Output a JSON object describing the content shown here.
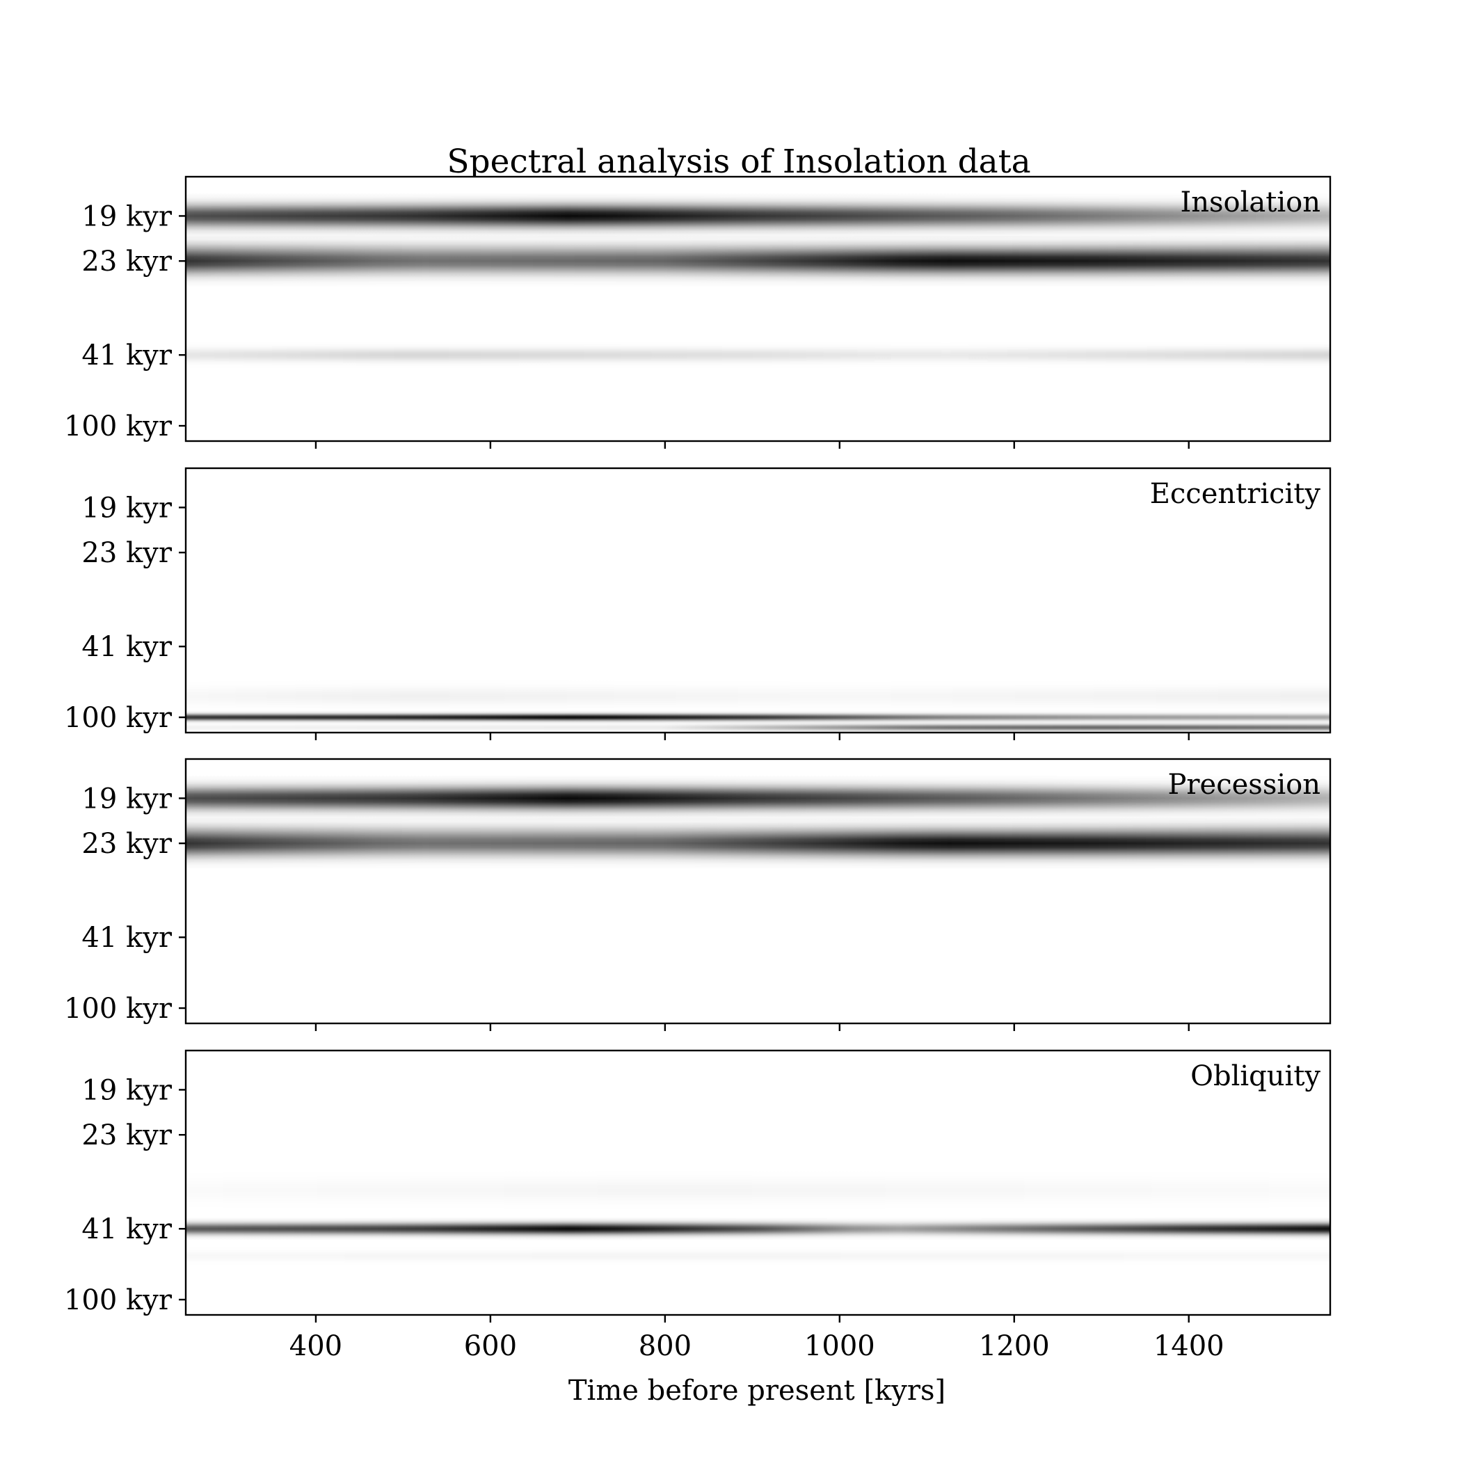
{
  "chart_data": {
    "type": "heatmap",
    "title": "Spectral analysis of Insolation data",
    "xlabel": "Time before present [kyrs]",
    "ylabel": "",
    "colormap": "greys",
    "grid": false,
    "sharex": true,
    "xlim": [
      251,
      1562
    ],
    "x_ticks": [
      400,
      600,
      800,
      1000,
      1200,
      1400
    ],
    "x_tick_labels": [
      "400",
      "600",
      "800",
      "1000",
      "1200",
      "1400"
    ],
    "y_axis": {
      "scale": "frequency (reciprocal of period)",
      "period_range_kyr": [
        16.5,
        145
      ],
      "ticks_kyr": [
        100,
        41,
        23,
        19
      ],
      "tick_labels": [
        "100 kyr",
        "41 kyr",
        "23 kyr",
        "19 kyr"
      ]
    },
    "panels": [
      {
        "label": "Insolation",
        "bands": [
          {
            "period_kyr": 41,
            "width_kyr": 1.5,
            "intensity": [
              [
                251,
                0.1
              ],
              [
                500,
                0.16
              ],
              [
                900,
                0.12
              ],
              [
                1100,
                0.08
              ],
              [
                1562,
                0.16
              ]
            ]
          },
          {
            "period_kyr": 23,
            "width_kyr": 0.9,
            "intensity": [
              [
                251,
                0.8
              ],
              [
                500,
                0.55
              ],
              [
                800,
                0.6
              ],
              [
                1100,
                0.95
              ],
              [
                1300,
                0.9
              ],
              [
                1562,
                0.8
              ]
            ]
          },
          {
            "period_kyr": 21.8,
            "width_kyr": 0.6,
            "intensity": [
              [
                251,
                0.1
              ],
              [
                500,
                0.08
              ],
              [
                1200,
                0.05
              ],
              [
                1562,
                0.12
              ]
            ]
          },
          {
            "period_kyr": 19,
            "width_kyr": 0.55,
            "intensity": [
              [
                251,
                0.7
              ],
              [
                500,
                0.8
              ],
              [
                700,
                0.98
              ],
              [
                900,
                0.8
              ],
              [
                1200,
                0.6
              ],
              [
                1562,
                0.3
              ]
            ]
          }
        ]
      },
      {
        "label": "Eccentricity",
        "bands": [
          {
            "period_kyr": 126,
            "width_kyr": 5,
            "intensity": [
              [
                251,
                0.05
              ],
              [
                800,
                0.08
              ],
              [
                1100,
                0.55
              ],
              [
                1300,
                0.6
              ],
              [
                1562,
                0.55
              ]
            ]
          },
          {
            "period_kyr": 100,
            "width_kyr": 4.5,
            "intensity": [
              [
                251,
                0.8
              ],
              [
                500,
                0.85
              ],
              [
                700,
                0.98
              ],
              [
                900,
                0.8
              ],
              [
                1100,
                0.5
              ],
              [
                1300,
                0.4
              ],
              [
                1562,
                0.35
              ]
            ]
          },
          {
            "period_kyr": 70,
            "width_kyr": 6,
            "intensity": [
              [
                251,
                0.03
              ],
              [
                500,
                0.06
              ],
              [
                1000,
                0.03
              ],
              [
                1562,
                0.06
              ]
            ]
          }
        ]
      },
      {
        "label": "Precession",
        "bands": [
          {
            "period_kyr": 23,
            "width_kyr": 0.9,
            "intensity": [
              [
                251,
                0.8
              ],
              [
                500,
                0.55
              ],
              [
                800,
                0.6
              ],
              [
                1100,
                0.95
              ],
              [
                1300,
                0.9
              ],
              [
                1562,
                0.8
              ]
            ]
          },
          {
            "period_kyr": 21.8,
            "width_kyr": 0.6,
            "intensity": [
              [
                251,
                0.1
              ],
              [
                500,
                0.08
              ],
              [
                1200,
                0.05
              ],
              [
                1562,
                0.12
              ]
            ]
          },
          {
            "period_kyr": 19,
            "width_kyr": 0.55,
            "intensity": [
              [
                251,
                0.7
              ],
              [
                500,
                0.8
              ],
              [
                700,
                0.98
              ],
              [
                900,
                0.8
              ],
              [
                1200,
                0.6
              ],
              [
                1562,
                0.3
              ]
            ]
          }
        ]
      },
      {
        "label": "Obliquity",
        "bands": [
          {
            "period_kyr": 53,
            "width_kyr": 2,
            "intensity": [
              [
                251,
                0.03
              ],
              [
                800,
                0.04
              ],
              [
                1562,
                0.03
              ]
            ]
          },
          {
            "period_kyr": 41,
            "width_kyr": 1.3,
            "intensity": [
              [
                251,
                0.65
              ],
              [
                500,
                0.75
              ],
              [
                700,
                0.98
              ],
              [
                900,
                0.7
              ],
              [
                1050,
                0.35
              ],
              [
                1200,
                0.55
              ],
              [
                1400,
                0.8
              ],
              [
                1562,
                0.95
              ]
            ]
          },
          {
            "period_kyr": 31,
            "width_kyr": 1.5,
            "intensity": [
              [
                251,
                0.02
              ],
              [
                800,
                0.04
              ],
              [
                1562,
                0.02
              ]
            ]
          }
        ]
      }
    ]
  }
}
